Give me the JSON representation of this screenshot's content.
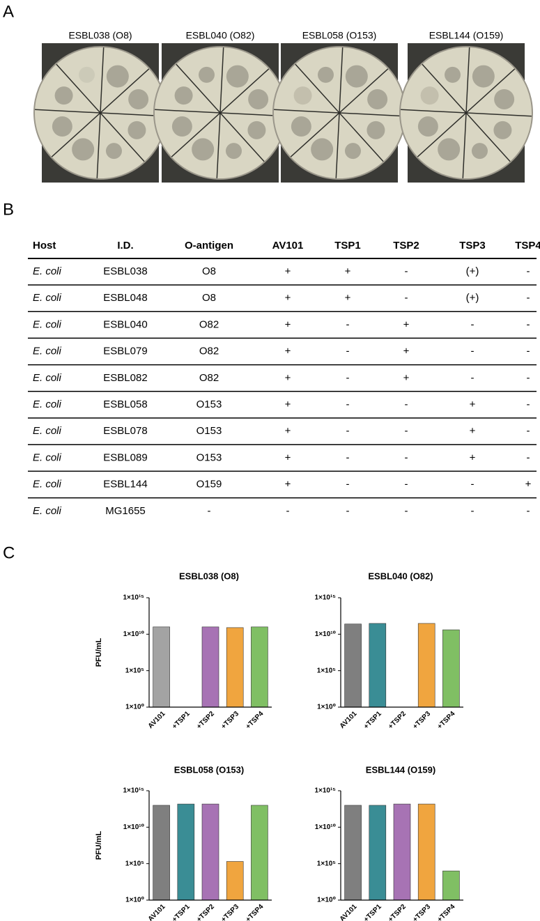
{
  "panels": [
    "A",
    "B",
    "C"
  ],
  "plates": [
    "ESBL038 (O8)",
    "ESBL040 (O82)",
    "ESBL058 (O153)",
    "ESBL144 (O159)"
  ],
  "table": {
    "header": [
      "Host",
      "I.D.",
      "O-antigen",
      "AV101",
      "TSP1",
      "TSP2",
      "TSP3",
      "TSP4"
    ],
    "rows": [
      [
        "E. coli",
        "ESBL038",
        "O8",
        "+",
        "+",
        "-",
        "(+)",
        "-"
      ],
      [
        "E. coli",
        "ESBL048",
        "O8",
        "+",
        "+",
        "-",
        "(+)",
        "-"
      ],
      [
        "E. coli",
        "ESBL040",
        "O82",
        "+",
        "-",
        "+",
        "-",
        "-"
      ],
      [
        "E. coli",
        "ESBL079",
        "O82",
        "+",
        "-",
        "+",
        "-",
        "-"
      ],
      [
        "E. coli",
        "ESBL082",
        "O82",
        "+",
        "-",
        "+",
        "-",
        "-"
      ],
      [
        "E. coli",
        "ESBL058",
        "O153",
        "+",
        "-",
        "-",
        "+",
        "-"
      ],
      [
        "E. coli",
        "ESBL078",
        "O153",
        "+",
        "-",
        "-",
        "+",
        "-"
      ],
      [
        "E. coli",
        "ESBL089",
        "O153",
        "+",
        "-",
        "-",
        "+",
        "-"
      ],
      [
        "E. coli",
        "ESBL144",
        "O159",
        "+",
        "-",
        "-",
        "-",
        "+"
      ],
      [
        "E. coli",
        "MG1655",
        "-",
        "-",
        "-",
        "-",
        "-",
        "-"
      ]
    ]
  },
  "chart_data": [
    {
      "type": "bar",
      "title": "ESBL038 (O8)",
      "ylabel": "PFU/mL",
      "categories": [
        "AV101",
        "+TSP1",
        "+TSP2",
        "+TSP3",
        "+TSP4"
      ],
      "values": [
        100000000000,
        null,
        100000000000,
        80000000000,
        100000000000
      ],
      "colors": [
        "#a3a3a3",
        "#3a8d95",
        "#a773b4",
        "#f0a53f",
        "#80bf64"
      ],
      "log_scale": true,
      "ylim": [
        1,
        1000000000000000
      ],
      "yticks": [
        {
          "value": 1,
          "label": "1×10⁰"
        },
        {
          "value": 100000,
          "label": "1×10⁵"
        },
        {
          "value": 10000000000,
          "label": "1×10¹⁰"
        },
        {
          "value": 1000000000000000,
          "label": "1×10¹⁵"
        }
      ]
    },
    {
      "type": "bar",
      "title": "ESBL040 (O82)",
      "categories": [
        "AV101",
        "+TSP1",
        "+TSP2",
        "+TSP3",
        "+TSP4"
      ],
      "values": [
        250000000000,
        300000000000,
        null,
        300000000000,
        40000000000
      ],
      "colors": [
        "#7f7f7f",
        "#3a8d95",
        "#a773b4",
        "#f0a53f",
        "#80bf64"
      ],
      "log_scale": true,
      "ylim": [
        1,
        1000000000000000
      ],
      "yticks": [
        {
          "value": 1,
          "label": "1×10⁰"
        },
        {
          "value": 100000,
          "label": "1×10⁵"
        },
        {
          "value": 10000000000,
          "label": "1×10¹⁰"
        },
        {
          "value": 1000000000000000,
          "label": "1×10¹⁵"
        }
      ]
    },
    {
      "type": "bar",
      "title": "ESBL058 (O153)",
      "ylabel": "PFU/mL",
      "categories": [
        "AV101",
        "+TSP1",
        "+TSP2",
        "+TSP3",
        "+TSP4"
      ],
      "values": [
        10000000000000,
        15000000000000,
        15000000000000,
        200000,
        10000000000000
      ],
      "colors": [
        "#7f7f7f",
        "#3a8d95",
        "#a773b4",
        "#f0a53f",
        "#80bf64"
      ],
      "log_scale": true,
      "ylim": [
        1,
        1000000000000000
      ],
      "yticks": [
        {
          "value": 1,
          "label": "1×10⁰"
        },
        {
          "value": 100000,
          "label": "1×10⁵"
        },
        {
          "value": 10000000000,
          "label": "1×10¹⁰"
        },
        {
          "value": 1000000000000000,
          "label": "1×10¹⁵"
        }
      ]
    },
    {
      "type": "bar",
      "title": "ESBL144 (O159)",
      "categories": [
        "AV101",
        "+TSP1",
        "+TSP2",
        "+TSP3",
        "+TSP4"
      ],
      "values": [
        10000000000000,
        10000000000000,
        15000000000000,
        15000000000000,
        10000
      ],
      "colors": [
        "#7f7f7f",
        "#3a8d95",
        "#a773b4",
        "#f0a53f",
        "#80bf64"
      ],
      "log_scale": true,
      "ylim": [
        1,
        1000000000000000
      ],
      "yticks": [
        {
          "value": 1,
          "label": "1×10⁰"
        },
        {
          "value": 100000,
          "label": "1×10⁵"
        },
        {
          "value": 10000000000,
          "label": "1×10¹⁰"
        },
        {
          "value": 1000000000000000,
          "label": "1×10¹⁵"
        }
      ]
    }
  ]
}
